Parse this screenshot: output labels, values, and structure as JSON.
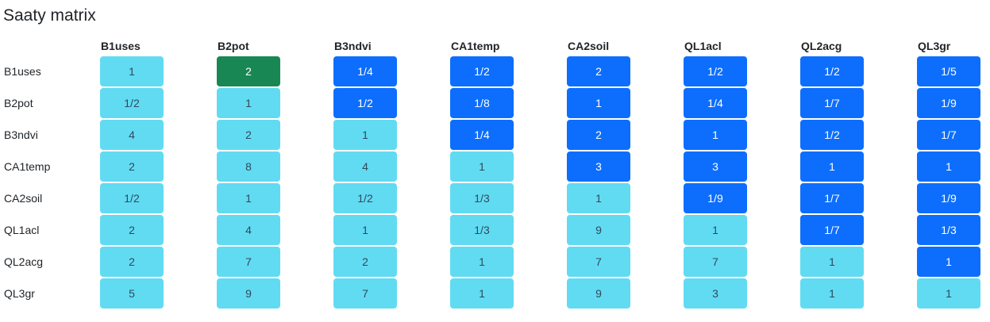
{
  "title": "Saaty matrix",
  "criteria": [
    "B1uses",
    "B2pot",
    "B3ndvi",
    "CA1temp",
    "CA2soil",
    "QL1acl",
    "QL2acg",
    "QL3gr"
  ],
  "colors": {
    "light": "#61dbf2",
    "blue": "#0d6efd",
    "green": "#198754"
  },
  "matrix": [
    [
      {
        "v": "1",
        "c": "light"
      },
      {
        "v": "2",
        "c": "green"
      },
      {
        "v": "1/4",
        "c": "blue"
      },
      {
        "v": "1/2",
        "c": "blue"
      },
      {
        "v": "2",
        "c": "blue"
      },
      {
        "v": "1/2",
        "c": "blue"
      },
      {
        "v": "1/2",
        "c": "blue"
      },
      {
        "v": "1/5",
        "c": "blue"
      }
    ],
    [
      {
        "v": "1/2",
        "c": "light"
      },
      {
        "v": "1",
        "c": "light"
      },
      {
        "v": "1/2",
        "c": "blue"
      },
      {
        "v": "1/8",
        "c": "blue"
      },
      {
        "v": "1",
        "c": "blue"
      },
      {
        "v": "1/4",
        "c": "blue"
      },
      {
        "v": "1/7",
        "c": "blue"
      },
      {
        "v": "1/9",
        "c": "blue"
      }
    ],
    [
      {
        "v": "4",
        "c": "light"
      },
      {
        "v": "2",
        "c": "light"
      },
      {
        "v": "1",
        "c": "light"
      },
      {
        "v": "1/4",
        "c": "blue"
      },
      {
        "v": "2",
        "c": "blue"
      },
      {
        "v": "1",
        "c": "blue"
      },
      {
        "v": "1/2",
        "c": "blue"
      },
      {
        "v": "1/7",
        "c": "blue"
      }
    ],
    [
      {
        "v": "2",
        "c": "light"
      },
      {
        "v": "8",
        "c": "light"
      },
      {
        "v": "4",
        "c": "light"
      },
      {
        "v": "1",
        "c": "light"
      },
      {
        "v": "3",
        "c": "blue"
      },
      {
        "v": "3",
        "c": "blue"
      },
      {
        "v": "1",
        "c": "blue"
      },
      {
        "v": "1",
        "c": "blue"
      }
    ],
    [
      {
        "v": "1/2",
        "c": "light"
      },
      {
        "v": "1",
        "c": "light"
      },
      {
        "v": "1/2",
        "c": "light"
      },
      {
        "v": "1/3",
        "c": "light"
      },
      {
        "v": "1",
        "c": "light"
      },
      {
        "v": "1/9",
        "c": "blue"
      },
      {
        "v": "1/7",
        "c": "blue"
      },
      {
        "v": "1/9",
        "c": "blue"
      }
    ],
    [
      {
        "v": "2",
        "c": "light"
      },
      {
        "v": "4",
        "c": "light"
      },
      {
        "v": "1",
        "c": "light"
      },
      {
        "v": "1/3",
        "c": "light"
      },
      {
        "v": "9",
        "c": "light"
      },
      {
        "v": "1",
        "c": "light"
      },
      {
        "v": "1/7",
        "c": "blue"
      },
      {
        "v": "1/3",
        "c": "blue"
      }
    ],
    [
      {
        "v": "2",
        "c": "light"
      },
      {
        "v": "7",
        "c": "light"
      },
      {
        "v": "2",
        "c": "light"
      },
      {
        "v": "1",
        "c": "light"
      },
      {
        "v": "7",
        "c": "light"
      },
      {
        "v": "7",
        "c": "light"
      },
      {
        "v": "1",
        "c": "light"
      },
      {
        "v": "1",
        "c": "blue"
      }
    ],
    [
      {
        "v": "5",
        "c": "light"
      },
      {
        "v": "9",
        "c": "light"
      },
      {
        "v": "7",
        "c": "light"
      },
      {
        "v": "1",
        "c": "light"
      },
      {
        "v": "9",
        "c": "light"
      },
      {
        "v": "3",
        "c": "light"
      },
      {
        "v": "1",
        "c": "light"
      },
      {
        "v": "1",
        "c": "light"
      }
    ]
  ]
}
